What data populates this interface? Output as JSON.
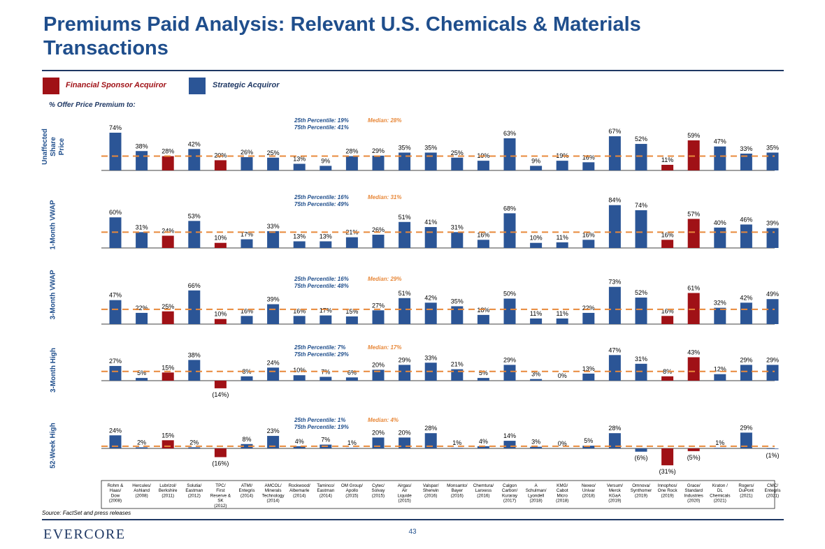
{
  "page": {
    "title": "Premiums Paid Analysis: Relevant U.S. Chemicals & Materials Transactions",
    "offer_label": "% Offer Price Premium to:",
    "source": "Source: FactSet and press releases",
    "logo": "EVERCORE",
    "page_number": "43"
  },
  "legend": {
    "financial": "Financial Sponsor Acquiror",
    "strategic": "Strategic Acquiror"
  },
  "colors": {
    "strategic": "#2b5596",
    "financial": "#a01116",
    "median_line": "#e8893b",
    "title": "#1f4e8c",
    "dark": "#1f3864"
  },
  "chart_data": {
    "type": "bar",
    "categories": [
      "Rohm & Haas/ Dow (2008)",
      "Hercules/ Ashland (2008)",
      "Lubrizol/ Berkshire (2011)",
      "Solutia/ Eastman (2012)",
      "TPC/ First Reserve & SK (2012)",
      "ATMI/ Entegris (2014)",
      "AMCOL/ Minerals Technology (2014)",
      "Rockwood/ Albemarle (2014)",
      "Taminco/ Eastman (2014)",
      "OM Group/ Apollo (2015)",
      "Cytec/ Solvay (2015)",
      "Airgas/ Air Liquide (2015)",
      "Valspar/ Sherwin (2016)",
      "Monsanto/ Bayer (2016)",
      "Chemtura/ Lanxess (2016)",
      "Calgon Carbon/ Kuraray (2017)",
      "A Schulman/ Lyondell (2018)",
      "KMG/ Cabot Micro (2018)",
      "Nexeo/ Univar (2018)",
      "Versum/ Merck KGaA (2019)",
      "Omnova/ Synthomer (2019)",
      "Innophos/ One Rock (2019)",
      "Grace/ Standard Industries (2020)",
      "Kraton / DL Chemicals (2021)",
      "Rogers/ DuPont (2021)",
      "CMC/ Entegris (2021)"
    ],
    "category_lines": [
      [
        "Rohm &",
        "Haas/",
        "Dow",
        "(2008)"
      ],
      [
        "Hercules/",
        "Ashland",
        "(2008)"
      ],
      [
        "Lubrizol/",
        "Berkshire",
        "(2011)"
      ],
      [
        "Solutia/",
        "Eastman",
        "(2012)"
      ],
      [
        "TPC/",
        "First",
        "Reserve &",
        "SK",
        "(2012)"
      ],
      [
        "ATMI/",
        "Entegris",
        "(2014)"
      ],
      [
        "AMCOL/",
        "Minerals",
        "Technology",
        "(2014)"
      ],
      [
        "Rockwood/",
        "Albemarle",
        "(2014)"
      ],
      [
        "Taminco/",
        "Eastman",
        "(2014)"
      ],
      [
        "OM Group/",
        "Apollo",
        "(2015)"
      ],
      [
        "Cytec/",
        "Solvay",
        "(2015)"
      ],
      [
        "Airgas/",
        "Air",
        "Liquide",
        "(2015)"
      ],
      [
        "Valspar/",
        "Sherwin",
        "(2016)"
      ],
      [
        "Monsanto/",
        "Bayer",
        "(2016)"
      ],
      [
        "Chemtura/",
        "Lanxess",
        "(2016)"
      ],
      [
        "Calgon",
        "Carbon/",
        "Kuraray",
        "(2017)"
      ],
      [
        "A",
        "Schulman/",
        "Lyondell",
        "(2018)"
      ],
      [
        "KMG/",
        "Cabot",
        "Micro",
        "(2018)"
      ],
      [
        "Nexeo/",
        "Univar",
        "(2018)"
      ],
      [
        "Versum/",
        "Merck",
        "KGaA",
        "(2019)"
      ],
      [
        "Omnova/",
        "Synthomer",
        "(2019)"
      ],
      [
        "Innophos/",
        "One Rock",
        "(2019)"
      ],
      [
        "Grace/",
        "Standard",
        "Industries",
        "(2020)"
      ],
      [
        "Kraton /",
        "DL",
        "Chemicals",
        "(2021)"
      ],
      [
        "Rogers/",
        "DuPont",
        "(2021)"
      ],
      [
        "CMC/",
        "Entegris",
        "(2021)"
      ]
    ],
    "acquiror_type": [
      "S",
      "S",
      "F",
      "S",
      "F",
      "S",
      "S",
      "S",
      "S",
      "S",
      "S",
      "S",
      "S",
      "S",
      "S",
      "S",
      "S",
      "S",
      "S",
      "S",
      "S",
      "F",
      "F",
      "S",
      "S",
      "S"
    ],
    "unit": "%",
    "series": [
      {
        "name": "Unaffected Share Price",
        "values": [
          74,
          38,
          28,
          42,
          20,
          26,
          25,
          13,
          9,
          28,
          29,
          35,
          35,
          25,
          19,
          63,
          9,
          19,
          16,
          67,
          52,
          11,
          59,
          47,
          33,
          35
        ],
        "p25_label": "25th Percentile: 19%",
        "p75_label": "75th Percentile: 41%",
        "median_label": "Median: 28%",
        "median": 28
      },
      {
        "name": "1-Month VWAP",
        "values": [
          60,
          31,
          24,
          53,
          10,
          17,
          33,
          13,
          13,
          21,
          26,
          51,
          41,
          31,
          16,
          68,
          10,
          11,
          16,
          84,
          74,
          16,
          57,
          40,
          46,
          39
        ],
        "p25_label": "25th Percentile: 16%",
        "p75_label": "75th Percentile: 49%",
        "median_label": "Median: 31%",
        "median": 31
      },
      {
        "name": "3-Month VWAP",
        "values": [
          47,
          22,
          25,
          66,
          10,
          16,
          39,
          16,
          17,
          15,
          27,
          51,
          42,
          35,
          18,
          50,
          11,
          11,
          22,
          73,
          52,
          16,
          61,
          32,
          42,
          49
        ],
        "p25_label": "25th Percentile: 16%",
        "p75_label": "75th Percentile: 48%",
        "median_label": "Median: 29%",
        "median": 29
      },
      {
        "name": "3-Month High",
        "values": [
          27,
          5,
          15,
          38,
          -14,
          8,
          24,
          10,
          7,
          6,
          20,
          29,
          33,
          21,
          5,
          29,
          3,
          0,
          13,
          47,
          31,
          8,
          43,
          12,
          29,
          29
        ],
        "p25_label": "25th Percentile: 7%",
        "p75_label": "75th Percentile: 29%",
        "median_label": "Median: 17%",
        "median": 17
      },
      {
        "name": "52-Week High",
        "values": [
          24,
          2,
          15,
          2,
          -16,
          8,
          23,
          4,
          7,
          1,
          20,
          20,
          28,
          1,
          4,
          14,
          3,
          0,
          5,
          28,
          -6,
          -31,
          -5,
          1,
          29,
          -1
        ],
        "p25_label": "25th Percentile: 1%",
        "p75_label": "75th Percentile: 19%",
        "median_label": "Median: 4%",
        "median": 4
      }
    ]
  }
}
